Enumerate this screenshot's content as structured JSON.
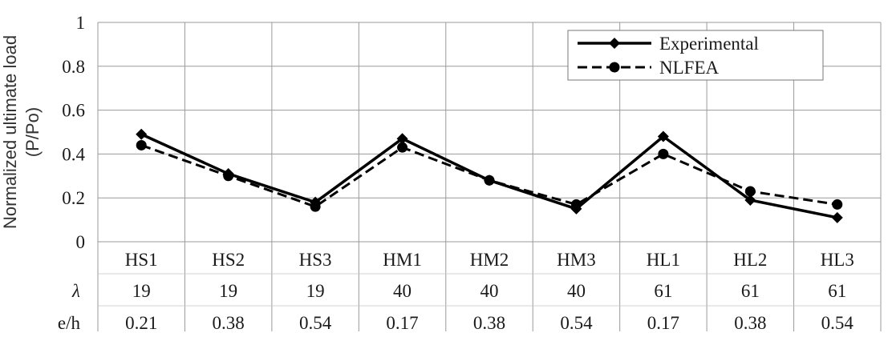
{
  "chart_data": {
    "type": "line",
    "title": "",
    "ylabel_lines": [
      "Normalized ultimate load",
      "(P/Po)"
    ],
    "ylim": [
      0,
      1
    ],
    "yticks": [
      "0",
      "0.2",
      "0.4",
      "0.6",
      "0.8",
      "1"
    ],
    "ytick_values": [
      0,
      0.2,
      0.4,
      0.6,
      0.8,
      1
    ],
    "grid": true,
    "legend_position": "top-right",
    "categories": [
      "HS1",
      "HS2",
      "HS3",
      "HM1",
      "HM2",
      "HM3",
      "HL1",
      "HL2",
      "HL3"
    ],
    "table_rows": [
      {
        "label": "λ",
        "values": [
          "19",
          "19",
          "19",
          "40",
          "40",
          "40",
          "61",
          "61",
          "61"
        ]
      },
      {
        "label": "e/h",
        "values": [
          "0.21",
          "0.38",
          "0.54",
          "0.17",
          "0.38",
          "0.54",
          "0.17",
          "0.38",
          "0.54"
        ]
      }
    ],
    "series": [
      {
        "name": "Experimental",
        "marker": "diamond",
        "line": "solid",
        "color": "#000000",
        "values": [
          0.49,
          0.31,
          0.18,
          0.47,
          0.28,
          0.15,
          0.48,
          0.19,
          0.11
        ]
      },
      {
        "name": "NLFEA",
        "marker": "circle",
        "line": "dashed",
        "color": "#000000",
        "values": [
          0.44,
          0.3,
          0.16,
          0.43,
          0.28,
          0.17,
          0.4,
          0.23,
          0.17
        ]
      }
    ]
  }
}
